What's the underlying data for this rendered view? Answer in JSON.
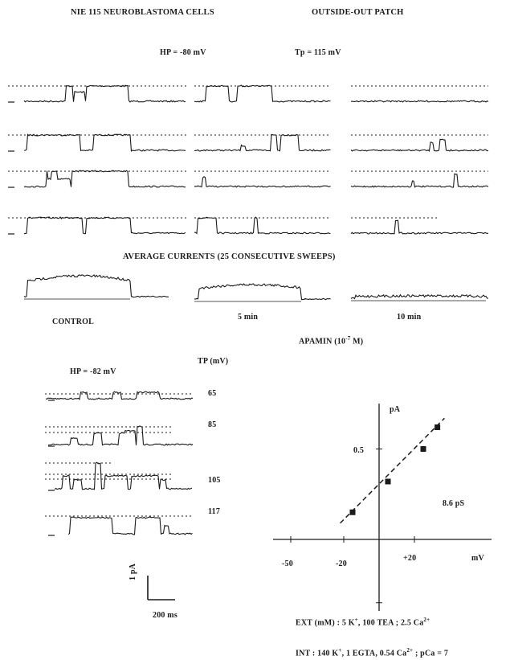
{
  "header": {
    "cell_type": "NIE 115 NEUROBLASTOMA CELLS",
    "patch_type": "OUTSIDE-OUT PATCH",
    "hp_top": "HP = -80 mV",
    "tp_top": "Tp = 115 mV"
  },
  "panel_a": {
    "average_title": "AVERAGE CURRENTS (25 CONSECUTIVE SWEEPS)",
    "condition_labels": [
      "CONTROL",
      "5 min",
      "10 min"
    ],
    "drug_label": "APAMIN (10",
    "drug_exponent": "-7",
    "drug_unit": " M)"
  },
  "panel_b": {
    "hp": "HP = -82 mV",
    "tp_header": "TP (mV)",
    "tp_values": [
      "65",
      "85",
      "105",
      "117"
    ],
    "scale_y": "1 pA",
    "scale_x": "200 ms"
  },
  "chart_data": {
    "type": "scatter",
    "xlabel": "mV",
    "ylabel": "pA",
    "x_ticks": [
      "-50",
      "-20",
      "+20"
    ],
    "y_ticks": [
      "0.5"
    ],
    "xlim": [
      -60,
      40
    ],
    "ylim": [
      -0.6,
      0.85
    ],
    "points": [
      {
        "x": -15,
        "y": 0.15
      },
      {
        "x": 5,
        "y": 0.32
      },
      {
        "x": 25,
        "y": 0.5
      },
      {
        "x": 33,
        "y": 0.62
      }
    ],
    "fit_line": {
      "x_start": -22,
      "y_start": 0.09,
      "x_end": 37,
      "y_end": 0.67,
      "style": "dashed"
    },
    "conductance_label": "8.6 pS"
  },
  "solutions": {
    "ext_prefix": "EXT (mM) : 5 K",
    "ext_mid": ", 100 TEA ; 2.5 Ca",
    "int_prefix": "INT : 140 K",
    "int_mid": ", 1 EGTA, 0.54 Ca",
    "int_suffix": " ; pCa = 7",
    "plus": "+",
    "ca_charge": "2+"
  }
}
